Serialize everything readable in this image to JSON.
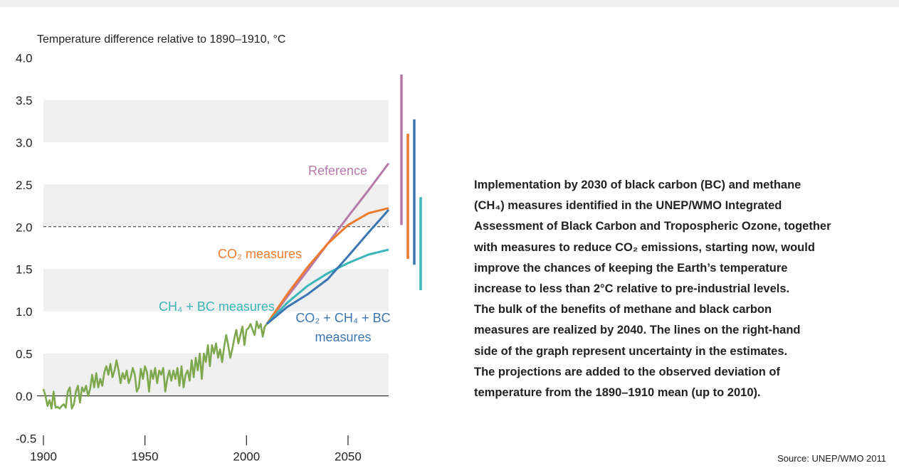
{
  "chart_data": {
    "type": "line",
    "y_label": "Temperature difference relative to 1890–1910, °C",
    "xlim": [
      1900,
      2070
    ],
    "xticks": [
      1900,
      1950,
      2000,
      2050
    ],
    "ylim": [
      -0.5,
      4.0
    ],
    "yticks": [
      {
        "value": -0.5,
        "label": "-0.5"
      },
      {
        "value": 0,
        "label": "0.0"
      },
      {
        "value": 0.5,
        "label": "0.5"
      },
      {
        "value": 1,
        "label": "1.0"
      },
      {
        "value": 1.5,
        "label": "1.5"
      },
      {
        "value": 2,
        "label": "2.0"
      },
      {
        "value": 2.5,
        "label": "2.5"
      },
      {
        "value": 3,
        "label": "3.0"
      },
      {
        "value": 3.5,
        "label": "3.5"
      },
      {
        "value": 4,
        "label": "4.0"
      }
    ],
    "reference_line": 2,
    "series": [
      {
        "color": "#7da84e",
        "x": [
          1900,
          1901,
          1902,
          1903,
          1904,
          1905,
          1906,
          1907,
          1908,
          1909,
          1910,
          1911,
          1912,
          1913,
          1914,
          1915,
          1916,
          1917,
          1918,
          1919,
          1920,
          1921,
          1922,
          1923,
          1924,
          1925,
          1926,
          1927,
          1928,
          1929,
          1930,
          1931,
          1932,
          1933,
          1934,
          1935,
          1936,
          1937,
          1938,
          1939,
          1940,
          1941,
          1942,
          1943,
          1944,
          1945,
          1946,
          1947,
          1948,
          1949,
          1950,
          1951,
          1952,
          1953,
          1954,
          1955,
          1956,
          1957,
          1958,
          1959,
          1960,
          1961,
          1962,
          1963,
          1964,
          1965,
          1966,
          1967,
          1968,
          1969,
          1970,
          1971,
          1972,
          1973,
          1974,
          1975,
          1976,
          1977,
          1978,
          1979,
          1980,
          1981,
          1982,
          1983,
          1984,
          1985,
          1986,
          1987,
          1988,
          1989,
          1990,
          1991,
          1992,
          1993,
          1994,
          1995,
          1996,
          1997,
          1998,
          1999,
          2000,
          2001,
          2002,
          2003,
          2004,
          2005,
          2006,
          2007,
          2008,
          2009,
          2010
        ],
        "values": [
          0.08,
          0.0,
          -0.12,
          -0.05,
          -0.15,
          0.05,
          -0.14,
          -0.13,
          -0.15,
          -0.12,
          -0.1,
          -0.14,
          0.05,
          0.1,
          -0.15,
          -0.1,
          0.05,
          0.12,
          -0.08,
          0.1,
          0.05,
          0.12,
          0.0,
          0.08,
          0.25,
          0.1,
          0.27,
          0.1,
          0.2,
          0.12,
          0.28,
          0.35,
          0.25,
          0.38,
          0.22,
          0.3,
          0.42,
          0.3,
          0.15,
          0.27,
          0.2,
          0.3,
          0.15,
          0.22,
          0.33,
          0.25,
          0.05,
          0.1,
          0.32,
          0.2,
          0.35,
          0.28,
          0.05,
          0.3,
          0.2,
          0.33,
          0.15,
          0.3,
          0.25,
          0.33,
          0.05,
          0.2,
          0.3,
          0.18,
          0.3,
          0.2,
          0.33,
          0.12,
          0.35,
          0.1,
          0.25,
          0.3,
          0.18,
          0.42,
          0.22,
          0.45,
          0.3,
          0.5,
          0.2,
          0.5,
          0.4,
          0.6,
          0.35,
          0.6,
          0.5,
          0.62,
          0.45,
          0.55,
          0.4,
          0.58,
          0.72,
          0.6,
          0.45,
          0.55,
          0.68,
          0.78,
          0.62,
          0.72,
          0.82,
          0.6,
          0.78,
          0.8,
          0.85,
          0.78,
          0.72,
          0.88,
          0.8,
          0.85,
          0.7,
          0.82,
          0.85
        ]
      },
      {
        "name": "Reference",
        "color": "#b57aa9",
        "x": [
          2010,
          2020,
          2030,
          2040,
          2050,
          2060,
          2070
        ],
        "values": [
          0.85,
          1.17,
          1.48,
          1.8,
          2.12,
          2.43,
          2.75
        ],
        "range": [
          2.02,
          3.8
        ]
      },
      {
        "name": "CO₂ measures",
        "color": "#ef7b2f",
        "x": [
          2010,
          2020,
          2030,
          2040,
          2050,
          2060,
          2070
        ],
        "values": [
          0.85,
          1.2,
          1.52,
          1.8,
          2.02,
          2.16,
          2.22
        ],
        "range": [
          1.62,
          3.1
        ]
      },
      {
        "name": "CH₄ + BC measures",
        "color": "#3bb6b8",
        "x": [
          2010,
          2020,
          2030,
          2040,
          2050,
          2060,
          2070
        ],
        "values": [
          0.85,
          1.1,
          1.3,
          1.45,
          1.57,
          1.67,
          1.73
        ],
        "range": [
          1.25,
          2.35
        ]
      },
      {
        "name": "CO₂ + CH₄ + BC measures",
        "color": "#3b76b3",
        "x": [
          2010,
          2020,
          2030,
          2040,
          2050,
          2060,
          2070
        ],
        "values": [
          0.85,
          1.05,
          1.2,
          1.38,
          1.65,
          1.93,
          2.2
        ],
        "range": [
          1.55,
          3.27
        ]
      }
    ],
    "description": [
      "Implementation by 2030 of black carbon (BC) and methane",
      "(CH₄) measures identified in the UNEP/WMO Integrated",
      "Assessment of Black Carbon and Tropospheric Ozone, together",
      "with measures to reduce CO₂ emissions, starting now, would",
      "improve the chances of keeping the Earth’s temperature",
      "increase to less than 2°C relative to pre-industrial levels.",
      "The bulk of the benefits of methane and black carbon",
      "measures are realized by 2040. The lines on the right-hand",
      "side of the graph represent uncertainty in the estimates.",
      "The projections are added to the observed deviation of",
      "temperature from the 1890–1910 mean (up to 2010)."
    ],
    "source": "Source: UNEP/WMO 2011"
  }
}
